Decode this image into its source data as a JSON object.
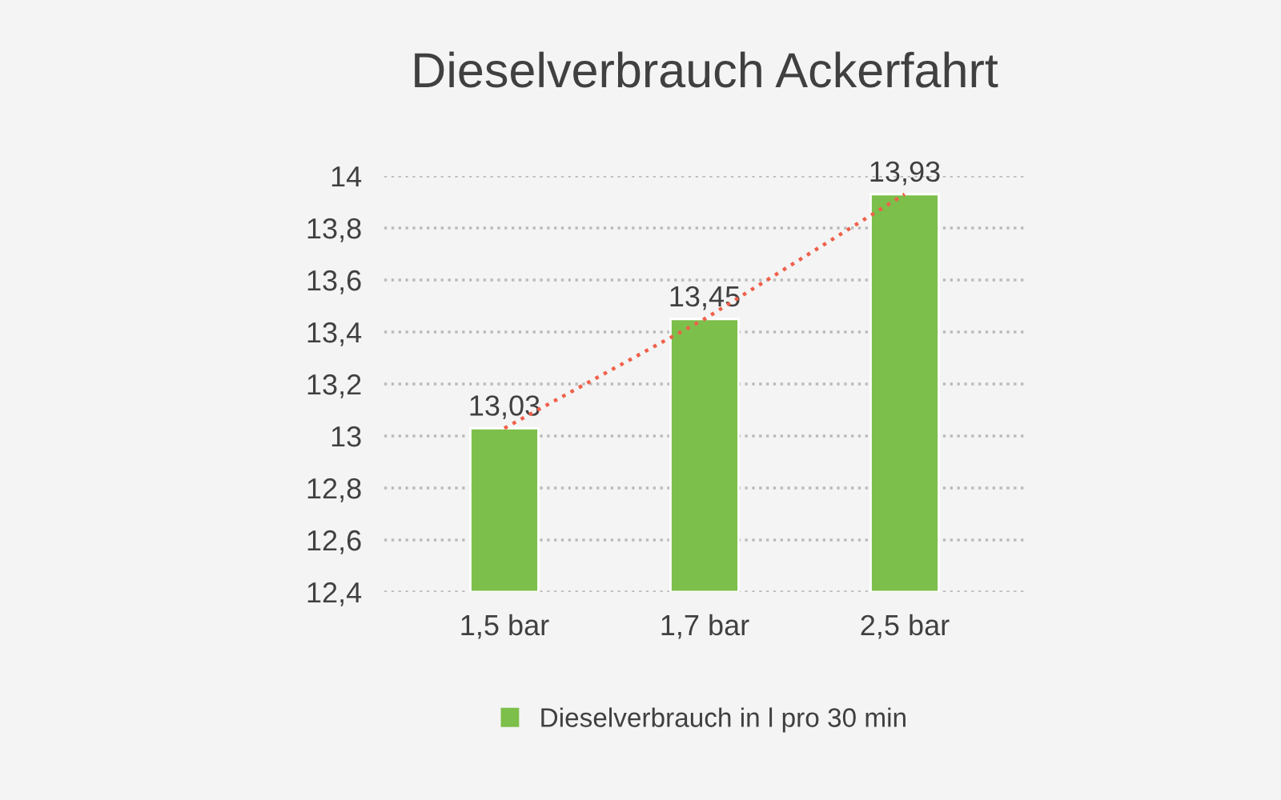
{
  "chart_data": {
    "type": "bar",
    "title": "Dieselverbrauch Ackerfahrt",
    "categories": [
      "1,5 bar",
      "1,7 bar",
      "2,5 bar"
    ],
    "series": [
      {
        "name": "Dieselverbrauch in l pro 30 min",
        "color": "#7cbf4a",
        "values": [
          13.03,
          13.45,
          13.93
        ],
        "value_labels": [
          "13,03",
          "13,45",
          "13,93"
        ]
      },
      {
        "type": "line",
        "color": "#f0604a",
        "line_style": "dotted",
        "values": [
          13.03,
          13.45,
          13.93
        ]
      }
    ],
    "ylim": [
      12.4,
      14.0
    ],
    "yticks": [
      {
        "value": 12.4,
        "label": "12,4"
      },
      {
        "value": 12.6,
        "label": "12,6"
      },
      {
        "value": 12.8,
        "label": "12,8"
      },
      {
        "value": 13.0,
        "label": "13"
      },
      {
        "value": 13.2,
        "label": "13,2"
      },
      {
        "value": 13.4,
        "label": "13,4"
      },
      {
        "value": 13.6,
        "label": "13,6"
      },
      {
        "value": 13.8,
        "label": "13,8"
      },
      {
        "value": 14.0,
        "label": "14"
      }
    ],
    "grid": "y",
    "legend": "bottom",
    "marker": "none"
  }
}
